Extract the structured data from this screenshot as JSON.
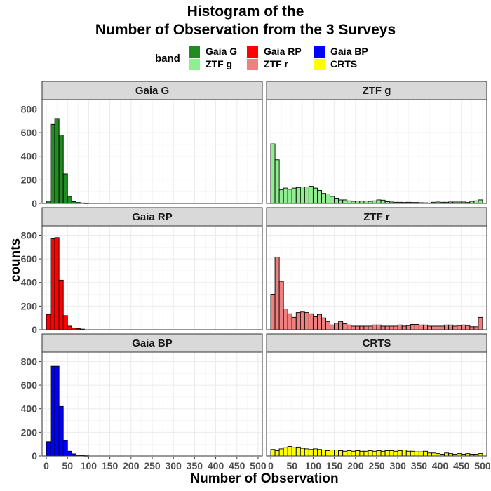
{
  "title_lines": [
    "Histogram of the",
    "Number of Observation from the 3 Surveys"
  ],
  "legend": {
    "title": "band",
    "items": [
      {
        "label": "Gaia G",
        "color": "#228B22"
      },
      {
        "label": "ZTF g",
        "color": "#90EE90"
      },
      {
        "label": "Gaia RP",
        "color": "#FF0000"
      },
      {
        "label": "ZTF r",
        "color": "#F08080"
      },
      {
        "label": "Gaia BP",
        "color": "#0000FF"
      },
      {
        "label": "CRTS",
        "color": "#FFFF00"
      }
    ]
  },
  "chart_data": {
    "type": "bar",
    "title": "Histogram of the Number of Observation from the 3 Surveys",
    "xlabel": "Number of Observation",
    "ylabel": "counts",
    "xlim": [
      -10,
      510
    ],
    "ylim": [
      0,
      880
    ],
    "x_ticks": [
      0,
      50,
      100,
      150,
      200,
      250,
      300,
      350,
      400,
      450,
      500
    ],
    "y_ticks": [
      0,
      200,
      400,
      600,
      800
    ],
    "bin_width": 10,
    "grid": true,
    "legend_position": "top",
    "panels": [
      {
        "name": "Gaia G",
        "color": "#228B22",
        "x": [
          5,
          15,
          25,
          35,
          45,
          55,
          65,
          75,
          85,
          95
        ],
        "counts": [
          20,
          670,
          720,
          580,
          250,
          60,
          15,
          8,
          4,
          2
        ]
      },
      {
        "name": "ZTF g",
        "color": "#90EE90",
        "x": [
          5,
          15,
          25,
          35,
          45,
          55,
          65,
          75,
          85,
          95,
          105,
          115,
          125,
          135,
          145,
          155,
          165,
          175,
          185,
          195,
          205,
          215,
          225,
          235,
          245,
          255,
          265,
          275,
          285,
          295,
          305,
          315,
          325,
          335,
          345,
          355,
          365,
          375,
          385,
          395,
          405,
          415,
          425,
          435,
          445,
          455,
          465,
          475,
          485,
          495
        ],
        "counts": [
          505,
          370,
          115,
          130,
          120,
          130,
          135,
          140,
          140,
          145,
          130,
          110,
          85,
          80,
          60,
          45,
          30,
          30,
          22,
          18,
          20,
          20,
          20,
          18,
          22,
          30,
          28,
          15,
          12,
          10,
          10,
          8,
          10,
          8,
          8,
          6,
          5,
          4,
          10,
          12,
          10,
          10,
          12,
          12,
          12,
          12,
          8,
          18,
          22,
          30
        ]
      },
      {
        "name": "Gaia RP",
        "color": "#FF0000",
        "x": [
          5,
          15,
          25,
          35,
          45,
          55,
          65,
          75,
          85
        ],
        "counts": [
          130,
          770,
          780,
          420,
          120,
          30,
          15,
          10,
          5
        ]
      },
      {
        "name": "ZTF r",
        "color": "#F08080",
        "x": [
          5,
          15,
          25,
          35,
          45,
          55,
          65,
          75,
          85,
          95,
          105,
          115,
          125,
          135,
          145,
          155,
          165,
          175,
          185,
          195,
          205,
          215,
          225,
          235,
          245,
          255,
          265,
          275,
          285,
          295,
          305,
          315,
          325,
          335,
          345,
          355,
          365,
          375,
          385,
          395,
          405,
          415,
          425,
          435,
          445,
          455,
          465,
          475,
          485,
          495
        ],
        "counts": [
          300,
          615,
          410,
          175,
          135,
          105,
          145,
          150,
          145,
          135,
          110,
          130,
          100,
          70,
          40,
          55,
          70,
          50,
          40,
          30,
          30,
          30,
          30,
          30,
          40,
          40,
          30,
          30,
          30,
          30,
          40,
          30,
          35,
          45,
          45,
          40,
          40,
          30,
          30,
          30,
          30,
          40,
          40,
          30,
          35,
          40,
          35,
          25,
          25,
          105
        ]
      },
      {
        "name": "Gaia BP",
        "color": "#0000FF",
        "x": [
          5,
          15,
          25,
          35,
          45,
          55,
          65,
          75,
          85,
          95
        ],
        "counts": [
          120,
          760,
          760,
          420,
          130,
          40,
          18,
          8,
          4,
          2
        ]
      },
      {
        "name": "CRTS",
        "color": "#FFFF00",
        "x": [
          5,
          15,
          25,
          35,
          45,
          55,
          65,
          75,
          85,
          95,
          105,
          115,
          125,
          135,
          145,
          155,
          165,
          175,
          185,
          195,
          205,
          215,
          225,
          235,
          245,
          255,
          265,
          275,
          285,
          295,
          305,
          315,
          325,
          335,
          345,
          355,
          365,
          375,
          385,
          395,
          405,
          415,
          425,
          435,
          445,
          455,
          465,
          475,
          485,
          495
        ],
        "counts": [
          55,
          45,
          60,
          70,
          80,
          70,
          75,
          65,
          60,
          55,
          60,
          55,
          50,
          45,
          50,
          50,
          45,
          40,
          45,
          40,
          45,
          40,
          40,
          45,
          40,
          45,
          40,
          45,
          45,
          40,
          45,
          50,
          40,
          40,
          35,
          35,
          40,
          25,
          25,
          20,
          15,
          25,
          20,
          15,
          20,
          15,
          20,
          15,
          15,
          20
        ]
      }
    ]
  }
}
